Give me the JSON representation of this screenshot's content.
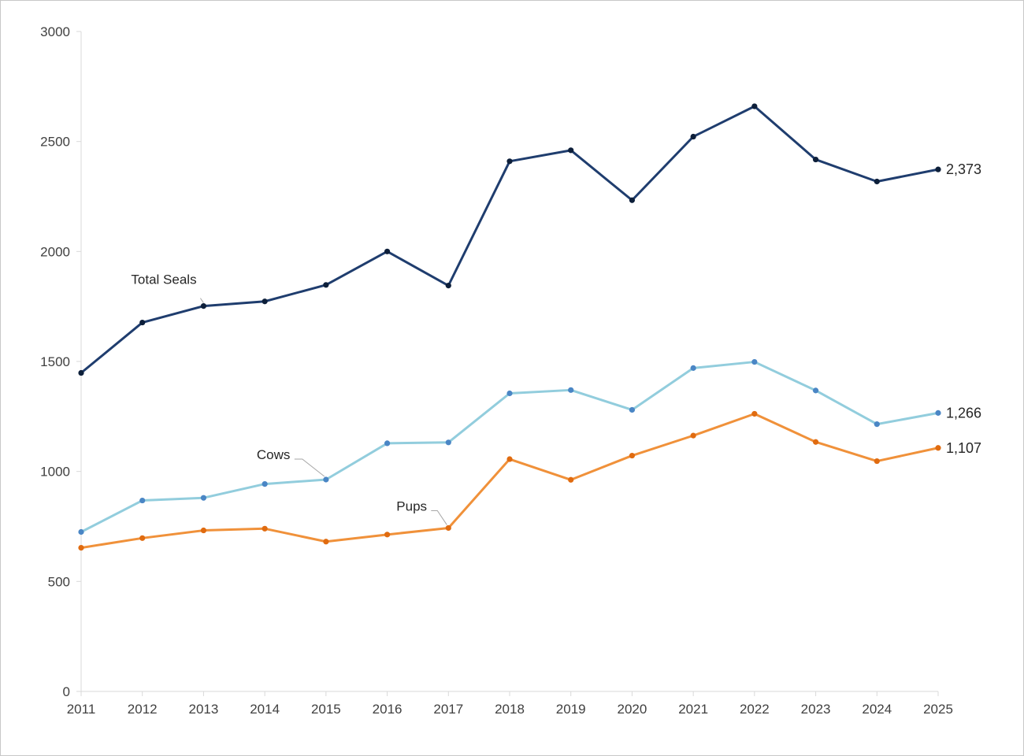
{
  "chart_data": {
    "type": "line",
    "title": "",
    "xlabel": "",
    "ylabel": "",
    "x": [
      2011,
      2012,
      2013,
      2014,
      2015,
      2016,
      2017,
      2018,
      2019,
      2020,
      2021,
      2022,
      2023,
      2024,
      2025
    ],
    "ylim": [
      0,
      3000
    ],
    "yticks": [
      0,
      500,
      1000,
      1500,
      2000,
      2500,
      3000
    ],
    "grid": false,
    "legend": "none",
    "series": [
      {
        "name": "Total Seals",
        "color": "#1f3d6e",
        "marker_color": "#0d1f3a",
        "values": [
          1448,
          1677,
          1752,
          1773,
          1848,
          2000,
          1845,
          2410,
          2460,
          2233,
          2522,
          2660,
          2418,
          2318,
          2373
        ],
        "end_label": "2,373"
      },
      {
        "name": "Cows",
        "color": "#92cddd",
        "marker_color": "#4a86c5",
        "values": [
          725,
          868,
          880,
          943,
          963,
          1128,
          1132,
          1355,
          1370,
          1280,
          1470,
          1498,
          1368,
          1215,
          1266
        ],
        "end_label": "1,266"
      },
      {
        "name": "Pups",
        "color": "#f0913a",
        "marker_color": "#e06b10",
        "values": [
          653,
          697,
          732,
          740,
          681,
          713,
          743,
          1056,
          962,
          1072,
          1163,
          1262,
          1134,
          1047,
          1107
        ],
        "end_label": "1,107"
      }
    ]
  }
}
